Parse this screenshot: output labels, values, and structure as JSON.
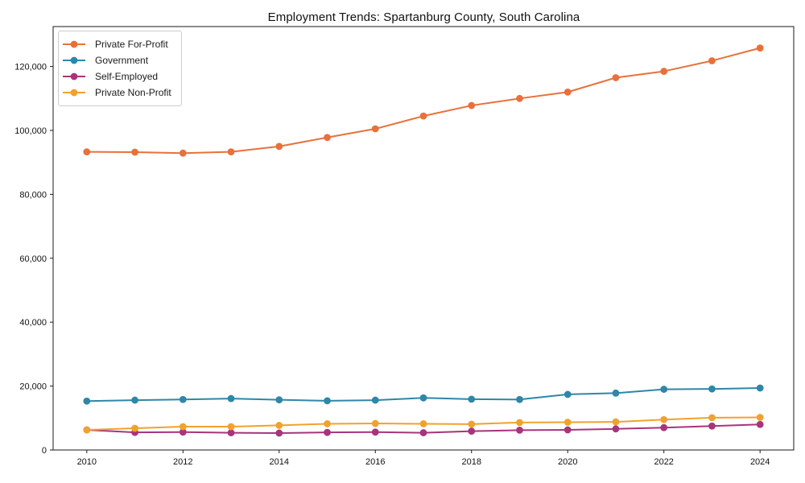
{
  "chart_data": {
    "type": "line",
    "title": "Employment Trends: Spartanburg County, South Carolina",
    "xlabel": "",
    "ylabel": "",
    "x": [
      2010,
      2011,
      2012,
      2013,
      2014,
      2015,
      2016,
      2017,
      2018,
      2019,
      2020,
      2021,
      2022,
      2023,
      2024
    ],
    "series": [
      {
        "name": "Private For-Profit",
        "color": "#e8713a",
        "values": [
          93300,
          93200,
          92900,
          93300,
          95000,
          97800,
          100500,
          104500,
          107800,
          110000,
          112000,
          116500,
          118500,
          121800,
          125800
        ]
      },
      {
        "name": "Government",
        "color": "#2e87a8",
        "values": [
          15300,
          15600,
          15800,
          16100,
          15700,
          15400,
          15600,
          16300,
          15900,
          15800,
          17400,
          17800,
          19000,
          19100,
          19400
        ]
      },
      {
        "name": "Self-Employed",
        "color": "#a8347c",
        "values": [
          6300,
          5500,
          5600,
          5400,
          5300,
          5500,
          5600,
          5400,
          5900,
          6200,
          6300,
          6600,
          7000,
          7500,
          8000
        ]
      },
      {
        "name": "Private Non-Profit",
        "color": "#f0a22e",
        "values": [
          6300,
          6800,
          7300,
          7300,
          7700,
          8200,
          8300,
          8200,
          8100,
          8600,
          8700,
          8800,
          9500,
          10100,
          10200
        ]
      }
    ],
    "xticks": [
      2010,
      2012,
      2014,
      2016,
      2018,
      2020,
      2022,
      2024
    ],
    "yticks": [
      0,
      20000,
      40000,
      60000,
      80000,
      100000,
      120000
    ],
    "ylim": [
      0,
      132500
    ],
    "x_margin_fraction": 0.05,
    "grid": false,
    "legend_position": "upper left",
    "marker": "circle",
    "axis_color": "#1a1a1a",
    "text_color": "#111111",
    "background_color": "#ffffff"
  }
}
